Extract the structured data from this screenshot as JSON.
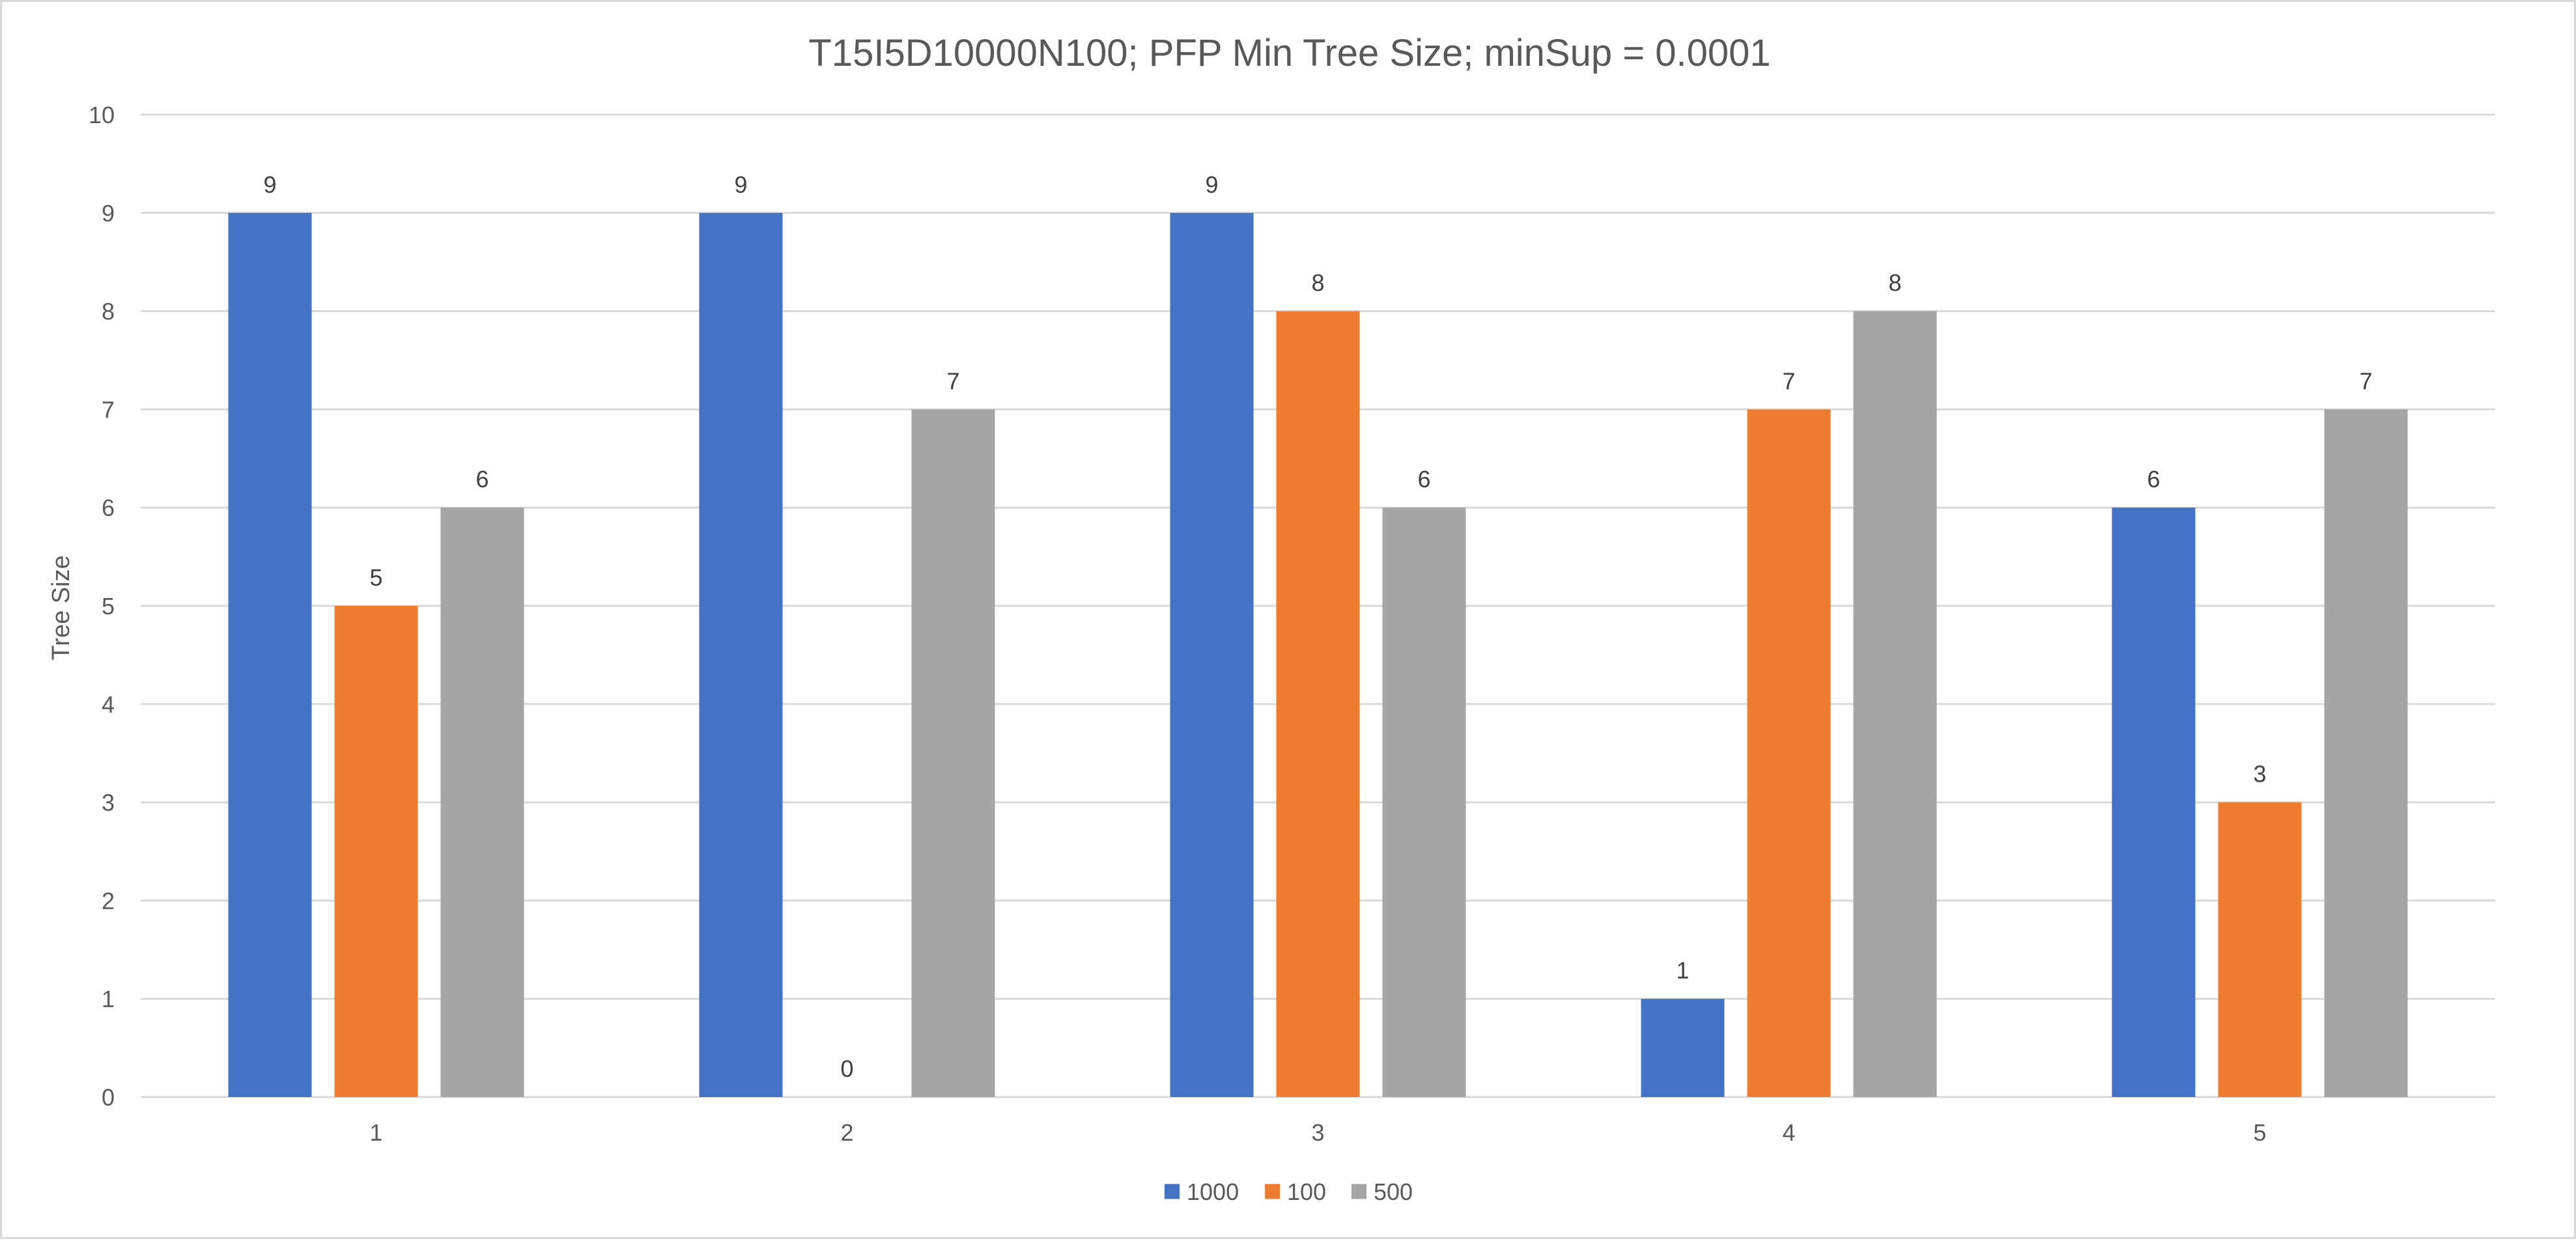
{
  "chart_data": {
    "type": "bar",
    "title": "T15I5D10000N100; PFP Min Tree Size; minSup = 0.0001",
    "xlabel": "",
    "ylabel": "Tree Size",
    "categories": [
      "1",
      "2",
      "3",
      "4",
      "5"
    ],
    "ylim": [
      0,
      10
    ],
    "yticks": [
      0,
      1,
      2,
      3,
      4,
      5,
      6,
      7,
      8,
      9,
      10
    ],
    "grid": true,
    "legend_position": "bottom",
    "data_labels": true,
    "series": [
      {
        "name": "1000",
        "color": "#4472c4",
        "values": [
          9,
          9,
          9,
          1,
          6
        ]
      },
      {
        "name": "100",
        "color": "#ed7d31",
        "values": [
          5,
          0,
          8,
          7,
          3
        ]
      },
      {
        "name": "500",
        "color": "#a5a5a5",
        "values": [
          6,
          7,
          6,
          8,
          7
        ]
      }
    ]
  }
}
